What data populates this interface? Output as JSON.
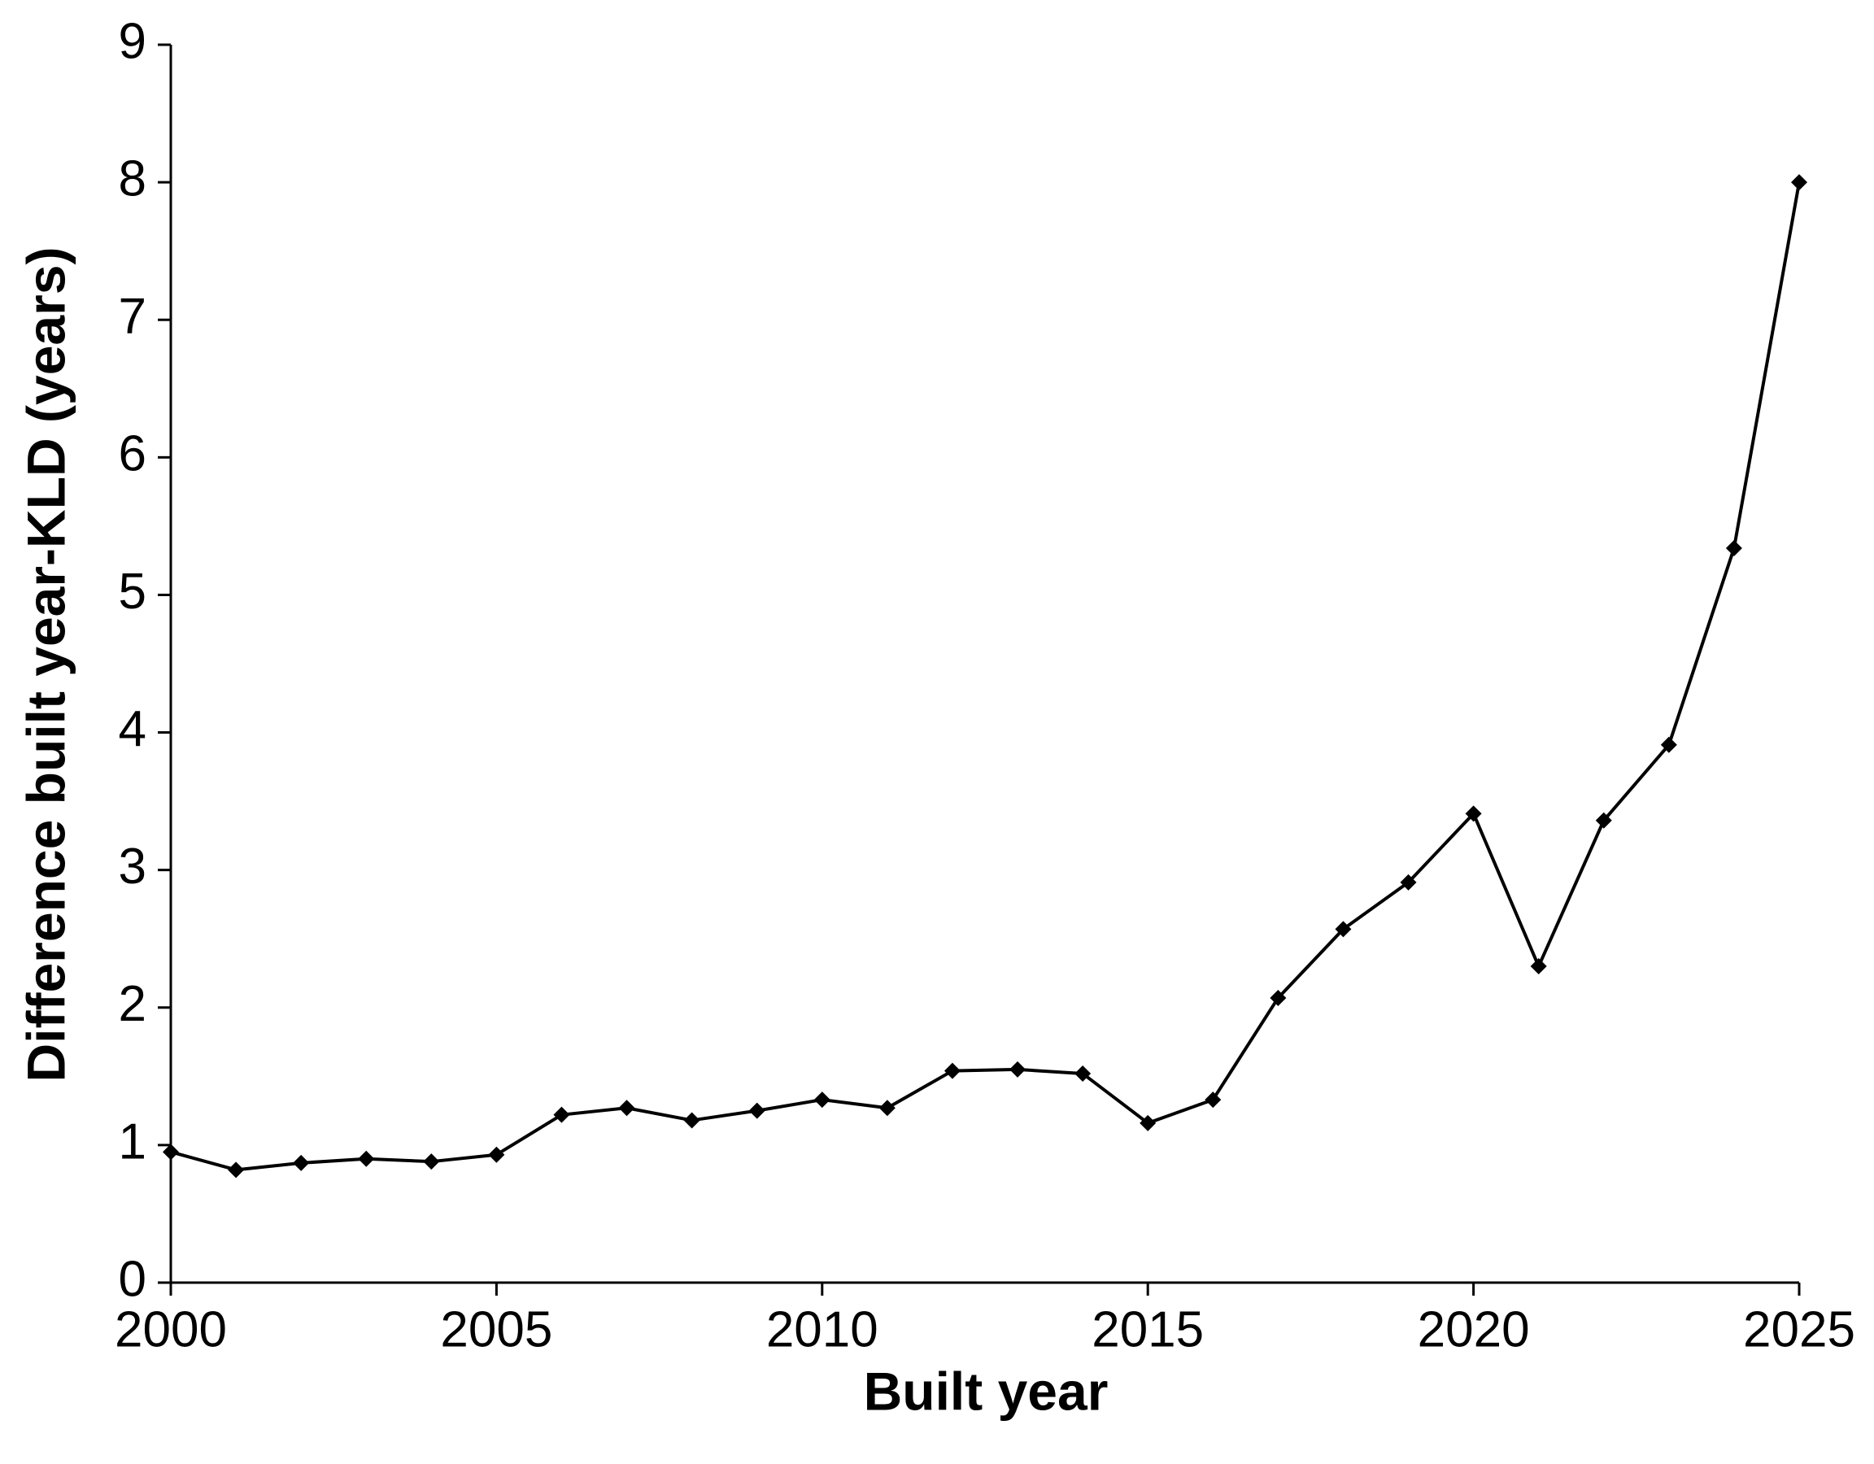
{
  "chart_data": {
    "type": "line",
    "x_label": "Built year",
    "y_label": "Difference built year-KLD (years)",
    "x": [
      2000,
      2001,
      2002,
      2003,
      2004,
      2005,
      2006,
      2007,
      2008,
      2009,
      2010,
      2011,
      2012,
      2013,
      2014,
      2015,
      2016,
      2017,
      2018,
      2019,
      2020,
      2021,
      2022,
      2023,
      2024,
      2025
    ],
    "values": [
      0.95,
      0.82,
      0.87,
      0.9,
      0.88,
      0.93,
      1.22,
      1.27,
      1.18,
      1.25,
      1.33,
      1.27,
      1.54,
      1.55,
      1.52,
      1.16,
      1.33,
      2.07,
      2.57,
      2.91,
      3.41,
      2.3,
      3.36,
      3.91,
      5.34,
      8.0
    ],
    "color": "#000000",
    "marker": "diamond",
    "xlim": [
      2000,
      2025
    ],
    "xticks": [
      2000,
      2005,
      2010,
      2015,
      2020,
      2025
    ],
    "ylim": [
      0,
      9
    ],
    "yticks": [
      0,
      1,
      2,
      3,
      4,
      5,
      6,
      7,
      8,
      9
    ],
    "grid": false
  }
}
